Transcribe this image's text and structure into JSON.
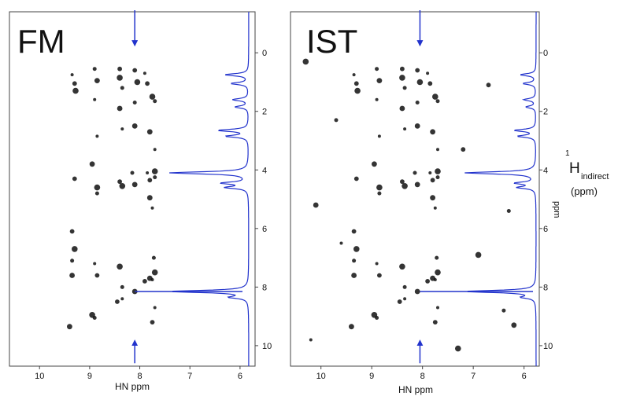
{
  "chart_data": [
    {
      "type": "scatter",
      "title": "FM",
      "xlabel": "HN ppm",
      "ylabel": "",
      "x_range_ppm": [
        10.6,
        5.7
      ],
      "y_range_ppm": [
        -1.4,
        10.7
      ],
      "x_ticks": [
        10,
        9,
        8,
        7,
        6
      ],
      "y_ticks": [
        0,
        2,
        4,
        6,
        8,
        10
      ],
      "arrow_x_ppm": 8.1,
      "trace_color": "#2233cc",
      "marker_color": "#111111",
      "trace_peaks": [
        {
          "y": 0.75,
          "h": 0.3
        },
        {
          "y": 1.05,
          "h": 0.22
        },
        {
          "y": 1.6,
          "h": 0.2
        },
        {
          "y": 1.85,
          "h": 0.17
        },
        {
          "y": 2.65,
          "h": 0.38
        },
        {
          "y": 2.85,
          "h": 0.28
        },
        {
          "y": 4.1,
          "h": 1.0
        },
        {
          "y": 4.45,
          "h": 0.33
        },
        {
          "y": 4.6,
          "h": 0.28
        },
        {
          "y": 8.15,
          "h": 1.0
        },
        {
          "y": 8.35,
          "h": 0.22
        }
      ],
      "peaks": [
        {
          "x": 9.35,
          "y": 0.75
        },
        {
          "x": 9.3,
          "y": 1.05
        },
        {
          "x": 9.28,
          "y": 1.3
        },
        {
          "x": 8.9,
          "y": 0.55
        },
        {
          "x": 8.85,
          "y": 0.95
        },
        {
          "x": 8.9,
          "y": 1.6
        },
        {
          "x": 8.4,
          "y": 0.55
        },
        {
          "x": 8.4,
          "y": 0.85
        },
        {
          "x": 8.35,
          "y": 1.2
        },
        {
          "x": 8.4,
          "y": 1.9
        },
        {
          "x": 8.35,
          "y": 2.6
        },
        {
          "x": 8.1,
          "y": 0.6
        },
        {
          "x": 8.05,
          "y": 1.0
        },
        {
          "x": 8.1,
          "y": 1.7
        },
        {
          "x": 8.1,
          "y": 2.5
        },
        {
          "x": 7.9,
          "y": 0.7
        },
        {
          "x": 7.85,
          "y": 1.05
        },
        {
          "x": 7.75,
          "y": 1.5
        },
        {
          "x": 7.7,
          "y": 1.65
        },
        {
          "x": 7.8,
          "y": 2.7
        },
        {
          "x": 7.7,
          "y": 3.3
        },
        {
          "x": 9.3,
          "y": 4.3
        },
        {
          "x": 8.85,
          "y": 4.6
        },
        {
          "x": 8.85,
          "y": 4.8
        },
        {
          "x": 8.95,
          "y": 3.8
        },
        {
          "x": 8.85,
          "y": 2.85
        },
        {
          "x": 8.4,
          "y": 4.4
        },
        {
          "x": 8.35,
          "y": 4.55
        },
        {
          "x": 8.15,
          "y": 4.1
        },
        {
          "x": 8.1,
          "y": 4.5
        },
        {
          "x": 7.85,
          "y": 4.1
        },
        {
          "x": 7.8,
          "y": 4.35
        },
        {
          "x": 7.7,
          "y": 4.05
        },
        {
          "x": 7.7,
          "y": 4.25
        },
        {
          "x": 7.8,
          "y": 4.95
        },
        {
          "x": 7.75,
          "y": 5.3
        },
        {
          "x": 9.35,
          "y": 6.1
        },
        {
          "x": 9.3,
          "y": 6.7
        },
        {
          "x": 9.35,
          "y": 7.1
        },
        {
          "x": 9.35,
          "y": 7.6
        },
        {
          "x": 8.9,
          "y": 7.2
        },
        {
          "x": 8.85,
          "y": 7.6
        },
        {
          "x": 8.4,
          "y": 7.3
        },
        {
          "x": 8.35,
          "y": 8.0
        },
        {
          "x": 7.8,
          "y": 7.7
        },
        {
          "x": 7.75,
          "y": 7.75
        },
        {
          "x": 7.9,
          "y": 7.8
        },
        {
          "x": 7.7,
          "y": 7.5
        },
        {
          "x": 7.72,
          "y": 7.0
        },
        {
          "x": 8.1,
          "y": 8.15
        },
        {
          "x": 8.35,
          "y": 8.4
        },
        {
          "x": 8.45,
          "y": 8.5
        },
        {
          "x": 8.95,
          "y": 8.95
        },
        {
          "x": 8.9,
          "y": 9.05
        },
        {
          "x": 9.4,
          "y": 9.35
        },
        {
          "x": 7.7,
          "y": 8.7
        },
        {
          "x": 7.75,
          "y": 9.2
        }
      ]
    },
    {
      "type": "scatter",
      "title": "IST",
      "xlabel": "HN ppm",
      "ylabel": "¹H indirect (ppm)",
      "ylabel_main": "H",
      "ylabel_sup": "1",
      "ylabel_sub": "indirect",
      "ylabel_units": "(ppm)",
      "ylabel_rotated": "ppm",
      "x_range_ppm": [
        10.6,
        5.7
      ],
      "y_range_ppm": [
        -1.4,
        10.7
      ],
      "x_ticks": [
        10,
        9,
        8,
        7,
        6
      ],
      "y_ticks": [
        0,
        2,
        4,
        6,
        8,
        10
      ],
      "arrow_x_ppm": 8.05,
      "trace_color": "#2233cc",
      "marker_color": "#111111",
      "trace_peaks": [
        {
          "y": 0.75,
          "h": 0.22
        },
        {
          "y": 1.05,
          "h": 0.18
        },
        {
          "y": 1.6,
          "h": 0.17
        },
        {
          "y": 1.85,
          "h": 0.14
        },
        {
          "y": 2.65,
          "h": 0.3
        },
        {
          "y": 2.85,
          "h": 0.25
        },
        {
          "y": 4.1,
          "h": 1.0
        },
        {
          "y": 4.45,
          "h": 0.28
        },
        {
          "y": 4.6,
          "h": 0.25
        },
        {
          "y": 8.15,
          "h": 1.0
        },
        {
          "y": 8.35,
          "h": 0.18
        }
      ],
      "peaks": [
        {
          "x": 9.35,
          "y": 0.75
        },
        {
          "x": 9.3,
          "y": 1.05
        },
        {
          "x": 9.28,
          "y": 1.3
        },
        {
          "x": 8.9,
          "y": 0.55
        },
        {
          "x": 8.85,
          "y": 0.95
        },
        {
          "x": 8.9,
          "y": 1.6
        },
        {
          "x": 8.4,
          "y": 0.55
        },
        {
          "x": 8.4,
          "y": 0.85
        },
        {
          "x": 8.35,
          "y": 1.2
        },
        {
          "x": 8.4,
          "y": 1.9
        },
        {
          "x": 8.35,
          "y": 2.6
        },
        {
          "x": 8.1,
          "y": 0.6
        },
        {
          "x": 8.05,
          "y": 1.0
        },
        {
          "x": 8.1,
          "y": 1.7
        },
        {
          "x": 8.1,
          "y": 2.5
        },
        {
          "x": 7.9,
          "y": 0.7
        },
        {
          "x": 7.85,
          "y": 1.05
        },
        {
          "x": 7.75,
          "y": 1.5
        },
        {
          "x": 7.7,
          "y": 1.65
        },
        {
          "x": 7.8,
          "y": 2.7
        },
        {
          "x": 7.7,
          "y": 3.3
        },
        {
          "x": 9.3,
          "y": 4.3
        },
        {
          "x": 8.85,
          "y": 4.6
        },
        {
          "x": 8.85,
          "y": 4.8
        },
        {
          "x": 8.95,
          "y": 3.8
        },
        {
          "x": 8.85,
          "y": 2.85
        },
        {
          "x": 8.4,
          "y": 4.4
        },
        {
          "x": 8.35,
          "y": 4.55
        },
        {
          "x": 8.15,
          "y": 4.1
        },
        {
          "x": 8.1,
          "y": 4.5
        },
        {
          "x": 7.85,
          "y": 4.1
        },
        {
          "x": 7.8,
          "y": 4.35
        },
        {
          "x": 7.7,
          "y": 4.05
        },
        {
          "x": 7.7,
          "y": 4.25
        },
        {
          "x": 7.8,
          "y": 4.95
        },
        {
          "x": 7.75,
          "y": 5.3
        },
        {
          "x": 9.35,
          "y": 6.1
        },
        {
          "x": 9.3,
          "y": 6.7
        },
        {
          "x": 9.35,
          "y": 7.1
        },
        {
          "x": 9.35,
          "y": 7.6
        },
        {
          "x": 8.9,
          "y": 7.2
        },
        {
          "x": 8.85,
          "y": 7.6
        },
        {
          "x": 8.4,
          "y": 7.3
        },
        {
          "x": 8.35,
          "y": 8.0
        },
        {
          "x": 7.8,
          "y": 7.7
        },
        {
          "x": 7.75,
          "y": 7.75
        },
        {
          "x": 7.9,
          "y": 7.8
        },
        {
          "x": 7.7,
          "y": 7.5
        },
        {
          "x": 7.72,
          "y": 7.0
        },
        {
          "x": 8.1,
          "y": 8.15
        },
        {
          "x": 8.35,
          "y": 8.4
        },
        {
          "x": 8.45,
          "y": 8.5
        },
        {
          "x": 8.95,
          "y": 8.95
        },
        {
          "x": 8.9,
          "y": 9.05
        },
        {
          "x": 9.4,
          "y": 9.35
        },
        {
          "x": 7.7,
          "y": 8.7
        },
        {
          "x": 7.75,
          "y": 9.2
        },
        {
          "x": 10.3,
          "y": 0.3
        },
        {
          "x": 9.7,
          "y": 2.3
        },
        {
          "x": 10.1,
          "y": 5.2
        },
        {
          "x": 9.6,
          "y": 6.5
        },
        {
          "x": 7.2,
          "y": 3.3
        },
        {
          "x": 6.9,
          "y": 6.9
        },
        {
          "x": 6.4,
          "y": 8.8
        },
        {
          "x": 6.2,
          "y": 9.3
        },
        {
          "x": 10.2,
          "y": 9.8
        },
        {
          "x": 6.7,
          "y": 1.1
        },
        {
          "x": 7.3,
          "y": 10.1
        },
        {
          "x": 6.3,
          "y": 5.4
        }
      ]
    }
  ]
}
